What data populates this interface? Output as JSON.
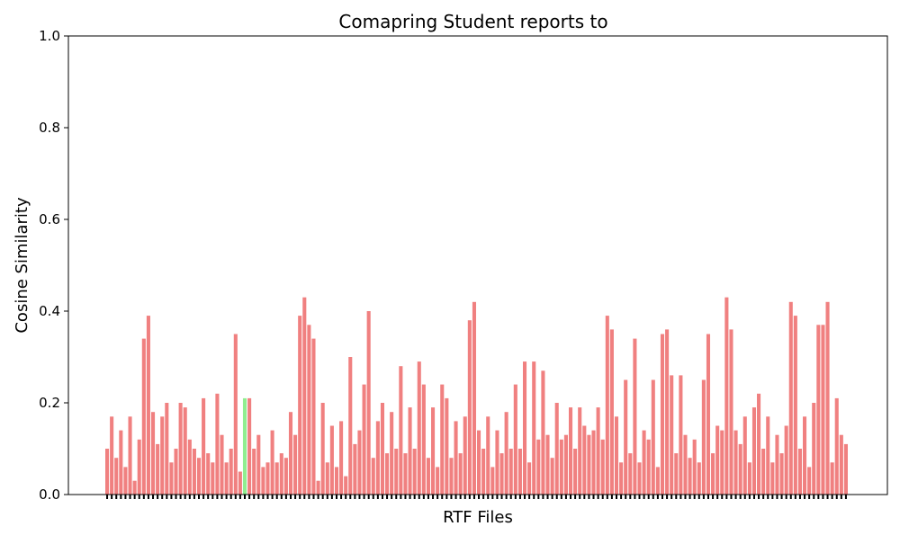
{
  "chart_data": {
    "type": "bar",
    "title": "Comapring Student reports to",
    "xlabel": "RTF Files",
    "ylabel": "Cosine Similarity",
    "ylim": [
      0,
      1
    ],
    "yticks": [
      "0.0",
      "0.2",
      "0.4",
      "0.6",
      "0.8",
      "1.0"
    ],
    "grid": false,
    "legend": "none",
    "bar_color": "#f08080",
    "highlight_color": "#90ee90",
    "highlight_index": 30,
    "axis_color": "#000000",
    "xtick_labels_shown": false,
    "categories_count": 162,
    "values": [
      0.1,
      0.17,
      0.08,
      0.14,
      0.06,
      0.17,
      0.03,
      0.12,
      0.34,
      0.39,
      0.18,
      0.11,
      0.17,
      0.2,
      0.07,
      0.1,
      0.2,
      0.19,
      0.12,
      0.1,
      0.08,
      0.21,
      0.09,
      0.07,
      0.22,
      0.13,
      0.07,
      0.1,
      0.35,
      0.05,
      0.21,
      0.21,
      0.1,
      0.13,
      0.06,
      0.07,
      0.14,
      0.07,
      0.09,
      0.08,
      0.18,
      0.13,
      0.39,
      0.43,
      0.37,
      0.34,
      0.03,
      0.2,
      0.07,
      0.15,
      0.06,
      0.16,
      0.04,
      0.3,
      0.11,
      0.14,
      0.24,
      0.4,
      0.08,
      0.16,
      0.2,
      0.09,
      0.18,
      0.1,
      0.28,
      0.09,
      0.19,
      0.1,
      0.29,
      0.24,
      0.08,
      0.19,
      0.06,
      0.24,
      0.21,
      0.08,
      0.16,
      0.09,
      0.17,
      0.38,
      0.42,
      0.14,
      0.1,
      0.17,
      0.06,
      0.14,
      0.09,
      0.18,
      0.1,
      0.24,
      0.1,
      0.29,
      0.07,
      0.29,
      0.12,
      0.27,
      0.13,
      0.08,
      0.2,
      0.12,
      0.13,
      0.19,
      0.1,
      0.19,
      0.15,
      0.13,
      0.14,
      0.19,
      0.12,
      0.39,
      0.36,
      0.17,
      0.07,
      0.25,
      0.09,
      0.34,
      0.07,
      0.14,
      0.12,
      0.25,
      0.06,
      0.35,
      0.36,
      0.26,
      0.09,
      0.26,
      0.13,
      0.08,
      0.12,
      0.07,
      0.25,
      0.35,
      0.09,
      0.15,
      0.14,
      0.43,
      0.36,
      0.14,
      0.11,
      0.17,
      0.07,
      0.19,
      0.22,
      0.1,
      0.17,
      0.07,
      0.13,
      0.09,
      0.15,
      0.42,
      0.39,
      0.1,
      0.17,
      0.06,
      0.2,
      0.37,
      0.37,
      0.42,
      0.07,
      0.21,
      0.13,
      0.11
    ]
  }
}
